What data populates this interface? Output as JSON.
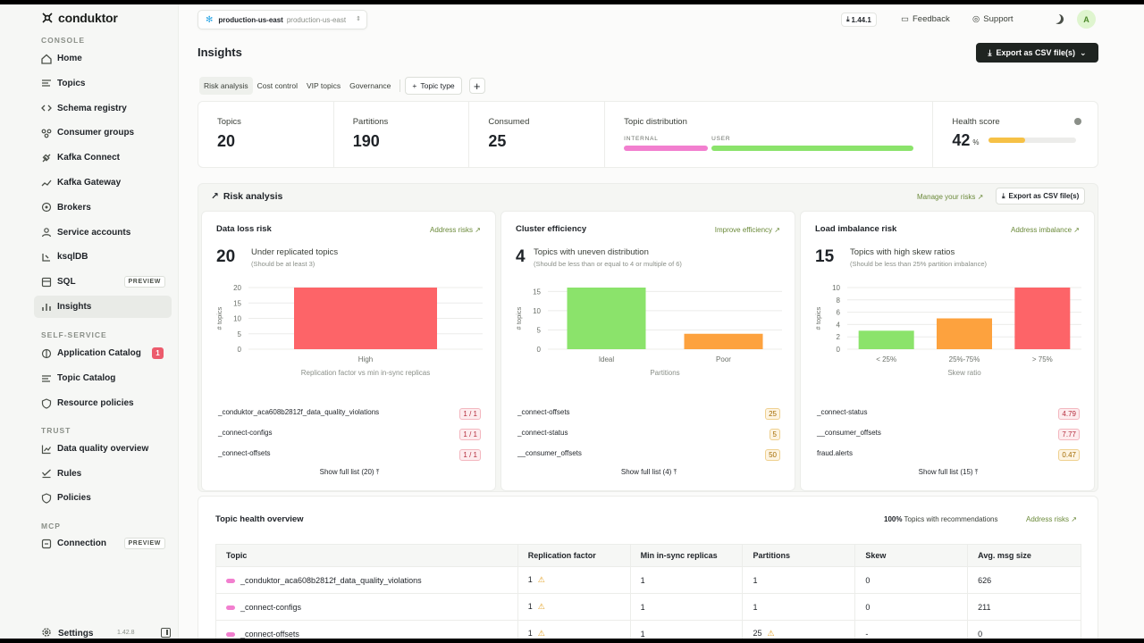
{
  "brand": "conduktor",
  "sidebar": {
    "console_label": "CONSOLE",
    "console_items": [
      {
        "label": "Home",
        "icon": "home-icon"
      },
      {
        "label": "Topics",
        "icon": "topics-icon"
      },
      {
        "label": "Schema registry",
        "icon": "code-icon"
      },
      {
        "label": "Consumer groups",
        "icon": "consumer-groups-icon"
      },
      {
        "label": "Kafka Connect",
        "icon": "connect-icon"
      },
      {
        "label": "Kafka Gateway",
        "icon": "gateway-icon"
      },
      {
        "label": "Brokers",
        "icon": "brokers-icon"
      },
      {
        "label": "Service accounts",
        "icon": "service-accounts-icon"
      },
      {
        "label": "ksqlDB",
        "icon": "ksqldb-icon"
      },
      {
        "label": "SQL",
        "icon": "sql-icon",
        "badge": "PREVIEW"
      },
      {
        "label": "Insights",
        "icon": "insights-icon",
        "active": true
      }
    ],
    "self_service_label": "SELF-SERVICE",
    "self_service_items": [
      {
        "label": "Application Catalog",
        "icon": "app-catalog-icon",
        "count": "1"
      },
      {
        "label": "Topic Catalog",
        "icon": "topic-catalog-icon"
      },
      {
        "label": "Resource policies",
        "icon": "policies-icon"
      }
    ],
    "trust_label": "TRUST",
    "trust_items": [
      {
        "label": "Data quality overview",
        "icon": "chart-icon"
      },
      {
        "label": "Rules",
        "icon": "rules-icon"
      },
      {
        "label": "Policies",
        "icon": "policies-icon"
      }
    ],
    "mcp_label": "MCP",
    "mcp_items": [
      {
        "label": "Connection",
        "icon": "connection-icon",
        "badge": "PREVIEW"
      }
    ],
    "settings_label": "Settings",
    "version": "1.42.8"
  },
  "header": {
    "env_name": "production-us-east",
    "env_sub": "production-us-east",
    "version_badge": "1.44.1",
    "feedback": "Feedback",
    "support": "Support",
    "avatar": "A"
  },
  "page": {
    "title": "Insights",
    "export_label": "Export as CSV file(s)",
    "tabs": [
      "Risk analysis",
      "Cost control",
      "VIP topics",
      "Governance"
    ],
    "topic_type": "Topic type",
    "add": "+"
  },
  "stats": {
    "topics_label": "Topics",
    "topics": "20",
    "partitions_label": "Partitions",
    "partitions": "190",
    "consumed_label": "Consumed",
    "consumed": "25",
    "distribution_label": "Topic distribution",
    "internal_label": "INTERNAL",
    "user_label": "USER",
    "internal_fraction": 0.29,
    "health_label": "Health score",
    "health": "42",
    "health_unit": "%",
    "health_fraction": 0.42,
    "colors": {
      "internal": "#f27fcf",
      "user": "#8be36b",
      "health": "#f6c146"
    }
  },
  "risk": {
    "title": "Risk analysis",
    "manage": "Manage your risks",
    "export": "Export as CSV file(s)",
    "cards": [
      {
        "title": "Data loss risk",
        "link": "Address risks",
        "big": "20",
        "sub": "Under replicated topics",
        "sub2": "(Should be at least 3)",
        "rows": [
          {
            "name": "_conduktor_aca608b2812f_data_quality_violations",
            "value": "1 / 1",
            "tone": "red"
          },
          {
            "name": "_connect-configs",
            "value": "1 / 1",
            "tone": "red"
          },
          {
            "name": "_connect-offsets",
            "value": "1 / 1",
            "tone": "red"
          }
        ],
        "full_list": "Show full list (20)"
      },
      {
        "title": "Cluster efficiency",
        "link": "Improve efficiency",
        "big": "4",
        "sub": "Topics with uneven distribution",
        "sub2": "(Should be less than or equal to 4 or multiple of 6)",
        "rows": [
          {
            "name": "_connect-offsets",
            "value": "25",
            "tone": "amber"
          },
          {
            "name": "_connect-status",
            "value": "5",
            "tone": "amber"
          },
          {
            "name": "__consumer_offsets",
            "value": "50",
            "tone": "amber"
          }
        ],
        "full_list": "Show full list (4)"
      },
      {
        "title": "Load imbalance risk",
        "link": "Address imbalance",
        "big": "15",
        "sub": "Topics with high skew ratios",
        "sub2": "(Should be less than 25% partition imbalance)",
        "rows": [
          {
            "name": "_connect-status",
            "value": "4.79",
            "tone": "red"
          },
          {
            "name": "__consumer_offsets",
            "value": "7.77",
            "tone": "red"
          },
          {
            "name": "fraud.alerts",
            "value": "0.47",
            "tone": "amber"
          }
        ],
        "full_list": "Show full list (15)"
      }
    ]
  },
  "chart_data": [
    {
      "type": "bar",
      "categories": [
        "High"
      ],
      "values": [
        20
      ],
      "colors": [
        "#fd6468"
      ],
      "xlabel": "Replication factor vs min in-sync replicas",
      "ylabel": "# topics",
      "yticks": [
        0,
        5,
        10,
        15,
        20
      ],
      "ylim": [
        0,
        20
      ]
    },
    {
      "type": "bar",
      "categories": [
        "Ideal",
        "Poor"
      ],
      "values": [
        16,
        4
      ],
      "colors": [
        "#8be36b",
        "#fda23e"
      ],
      "xlabel": "Partitions",
      "ylabel": "# topics",
      "yticks": [
        0,
        5,
        10,
        15
      ],
      "ylim": [
        0,
        16
      ]
    },
    {
      "type": "bar",
      "categories": [
        "< 25%",
        "25%-75%",
        "> 75%"
      ],
      "values": [
        3,
        5,
        10
      ],
      "colors": [
        "#8be36b",
        "#fda23e",
        "#fd6468"
      ],
      "xlabel": "Skew ratio",
      "ylabel": "# topics",
      "yticks": [
        0,
        2,
        4,
        6,
        8,
        10
      ],
      "ylim": [
        0,
        10
      ]
    }
  ],
  "overview": {
    "title": "Topic health overview",
    "pct": "100%",
    "pct_label": "Topics with recommendations",
    "link": "Address risks",
    "columns": [
      "Topic",
      "Replication factor",
      "Min in-sync replicas",
      "Partitions",
      "Skew",
      "Avg. msg size"
    ],
    "rows": [
      {
        "topic": "_conduktor_aca608b2812f_data_quality_violations",
        "rf": "1",
        "rf_warn": true,
        "isr": "1",
        "partitions": "1",
        "p_warn": false,
        "skew": "0",
        "avg": "626"
      },
      {
        "topic": "_connect-configs",
        "rf": "1",
        "rf_warn": true,
        "isr": "1",
        "partitions": "1",
        "p_warn": false,
        "skew": "0",
        "avg": "211"
      },
      {
        "topic": "_connect-offsets",
        "rf": "1",
        "rf_warn": true,
        "isr": "1",
        "partitions": "25",
        "p_warn": true,
        "skew": "-",
        "avg": "0"
      }
    ]
  }
}
